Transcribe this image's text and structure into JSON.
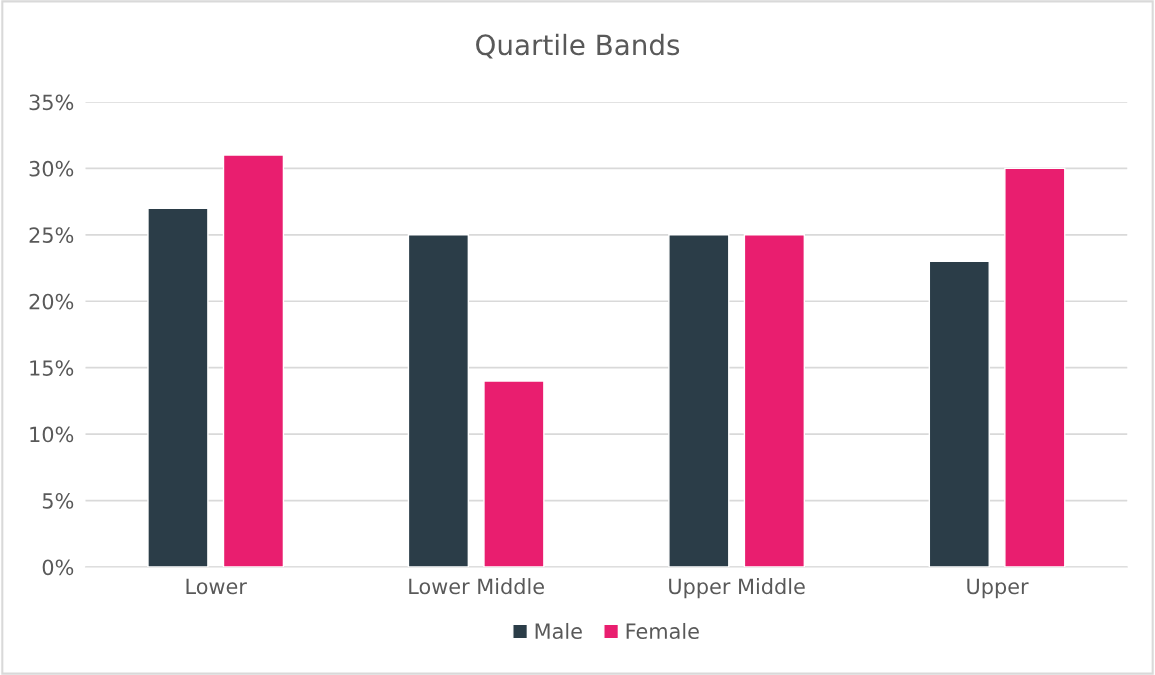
{
  "chart_data": {
    "type": "bar",
    "title": "Quartile Bands",
    "categories": [
      "Lower",
      "Lower Middle",
      "Upper Middle",
      "Upper"
    ],
    "series": [
      {
        "name": "Male",
        "color": "#2b3d48",
        "values": [
          27,
          25,
          25,
          23
        ]
      },
      {
        "name": "Female",
        "color": "#e91e6f",
        "values": [
          31,
          14,
          25,
          30
        ]
      }
    ],
    "ylim": [
      0,
      35
    ],
    "yticks": [
      {
        "value": 0,
        "label": "0%"
      },
      {
        "value": 5,
        "label": "5%"
      },
      {
        "value": 10,
        "label": "10%"
      },
      {
        "value": 15,
        "label": "15%"
      },
      {
        "value": 20,
        "label": "20%"
      },
      {
        "value": 25,
        "label": "25%"
      },
      {
        "value": 30,
        "label": "30%"
      },
      {
        "value": 35,
        "label": "35%"
      }
    ],
    "grid": "y",
    "legend": "bottom"
  }
}
